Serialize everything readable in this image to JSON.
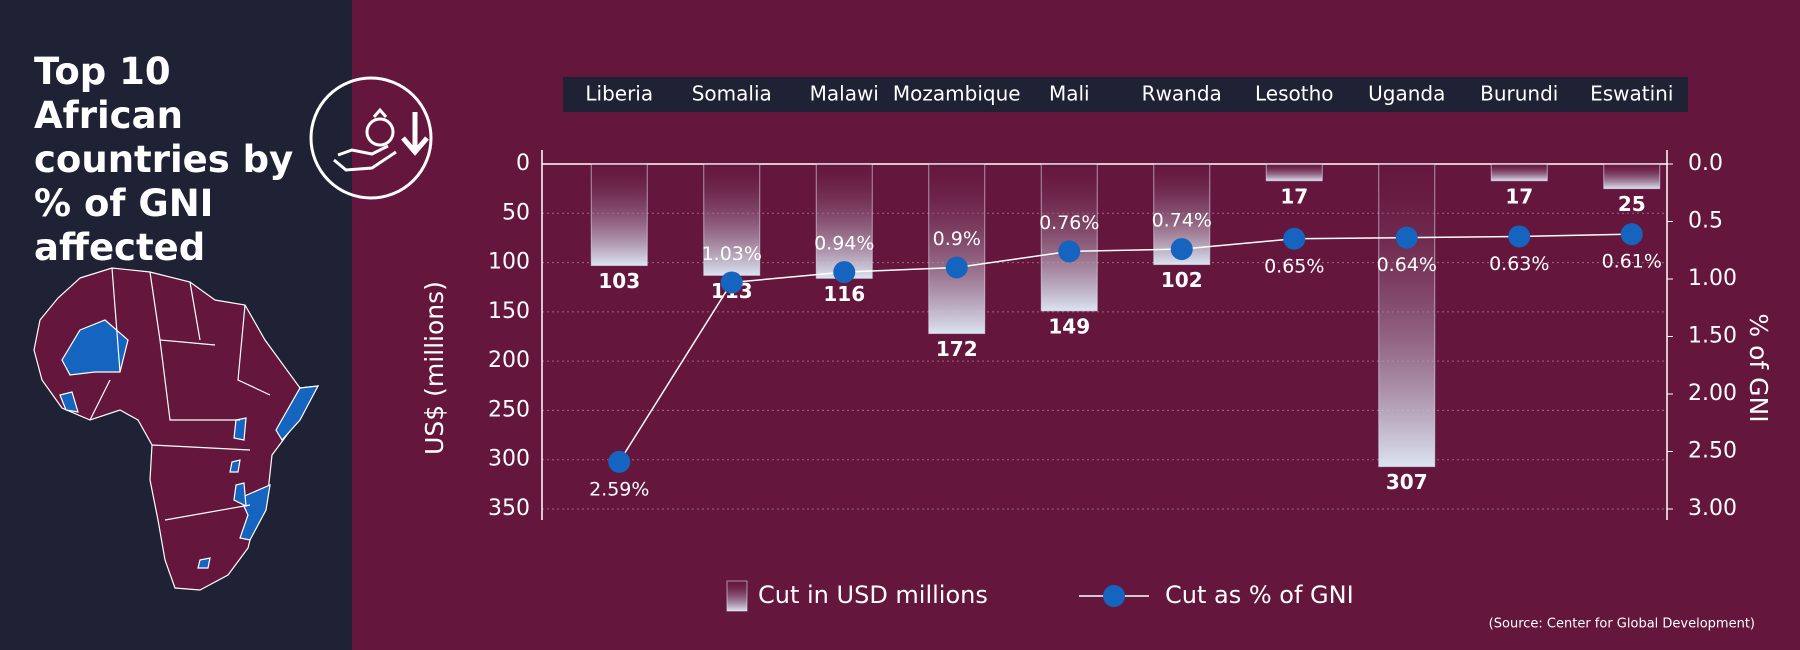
{
  "title": "Top 10 African countries by",
  "title_highlight": "% of GNI affected",
  "source": "(Source: Center for Global Development)",
  "chart_data": {
    "type": "bar",
    "categories": [
      "Liberia",
      "Somalia",
      "Malawi",
      "Mozambique",
      "Mali",
      "Rwanda",
      "Lesotho",
      "Uganda",
      "Burundi",
      "Eswatini"
    ],
    "series": [
      {
        "name": "Cut in USD millions",
        "color": "#dbe4f1",
        "values": [
          103,
          113,
          116,
          172,
          149,
          102,
          17,
          307,
          17,
          25
        ]
      },
      {
        "name": "Cut as % of GNI",
        "color": "#1565c0",
        "type": "line",
        "axis": "y2",
        "values": [
          2.59,
          1.03,
          0.94,
          0.9,
          0.76,
          0.74,
          0.65,
          0.64,
          0.63,
          0.61
        ],
        "value_labels": [
          "2.59%",
          "1.03%",
          "0.94%",
          "0.9%",
          "0.76%",
          "0.74%",
          "0.65%",
          "0.64%",
          "0.63%",
          "0.61%"
        ]
      }
    ],
    "ylabel": "US$ (millions)",
    "y2label": "% of GNI",
    "ylim": [
      0,
      350
    ],
    "yticks": [
      0,
      50,
      100,
      150,
      200,
      250,
      300,
      350
    ],
    "y2lim": [
      0,
      3
    ],
    "y2ticks": [
      {
        "value": 0,
        "label": "0.0"
      },
      0.5,
      {
        "value": 1,
        "label": "1.00"
      },
      {
        "value": 1.5,
        "label": "1.50"
      },
      {
        "value": 2,
        "label": "2.00"
      },
      {
        "value": 2.5,
        "label": "2.50"
      },
      {
        "value": 3,
        "label": "3.00"
      }
    ],
    "y_inverted": true,
    "grid": true,
    "legend": "bottom"
  }
}
